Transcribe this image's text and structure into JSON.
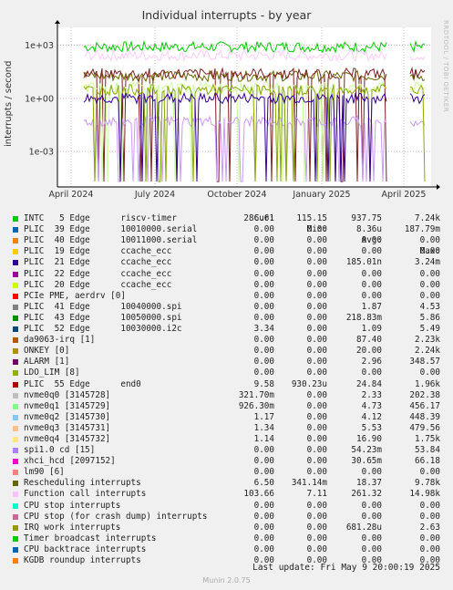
{
  "header": {
    "title": "Individual interrupts - by year",
    "side_text": "RRDTOOL / TOBI OETIKER",
    "ylabel": "interrupts / second"
  },
  "chart_data": {
    "type": "line",
    "title": "Individual interrupts - by year",
    "ylabel": "interrupts / second",
    "yscale": "log",
    "ylim": [
      1e-05,
      10000
    ],
    "yticks": [
      "1e+03",
      "1e+00",
      "1e-03"
    ],
    "xticks": [
      "April 2024",
      "July 2024",
      "October 2024",
      "January 2025",
      "April 2025"
    ],
    "grid": true,
    "series": [
      {
        "name": "INTC 5 Edge riscv-timer",
        "color": "#00cc00",
        "level": 800
      },
      {
        "name": "Function call interrupts",
        "color": "#ffccff",
        "level": 260
      },
      {
        "name": "Rescheduling interrupts",
        "color": "#666600",
        "level": 18
      },
      {
        "name": "PLIC 55 Edge end0",
        "color": "#7a1f1f",
        "level": 25
      },
      {
        "name": "nvme0q1 [3145729]",
        "color": "#ccff99",
        "level": 4
      },
      {
        "name": "spi1.0 cd [15]",
        "color": "#cc99ff",
        "level": 0.05
      },
      {
        "name": "ALARM [1]",
        "color": "#88aa00",
        "level": 3
      },
      {
        "name": "PLIC 21 Edge ccache_ecc",
        "color": "#330099",
        "level": 1
      }
    ]
  },
  "legend": {
    "headers": [
      "Cur:",
      "Min:",
      "Avg:",
      "Max:"
    ],
    "rows": [
      {
        "label": "INTC   5 Edge      riscv-timer",
        "color": "#00cc00",
        "cur": "286.61",
        "min": "115.15",
        "avg": "937.75",
        "max": "7.24k"
      },
      {
        "label": "PLIC  39 Edge      10010000.serial",
        "color": "#0066b3",
        "cur": "0.00",
        "min": "0.00",
        "avg": "8.36u",
        "max": "187.79m"
      },
      {
        "label": "PLIC  40 Edge      10011000.serial",
        "color": "#ff8000",
        "cur": "0.00",
        "min": "0.00",
        "avg": "0.00",
        "max": "0.00"
      },
      {
        "label": "PLIC  19 Edge      ccache_ecc",
        "color": "#ffcc00",
        "cur": "0.00",
        "min": "0.00",
        "avg": "0.00",
        "max": "0.00"
      },
      {
        "label": "PLIC  21 Edge      ccache_ecc",
        "color": "#330099",
        "cur": "0.00",
        "min": "0.00",
        "avg": "185.01n",
        "max": "3.24m"
      },
      {
        "label": "PLIC  22 Edge      ccache_ecc",
        "color": "#990099",
        "cur": "0.00",
        "min": "0.00",
        "avg": "0.00",
        "max": "0.00"
      },
      {
        "label": "PLIC  20 Edge      ccache_ecc",
        "color": "#ccff00",
        "cur": "0.00",
        "min": "0.00",
        "avg": "0.00",
        "max": "0.00"
      },
      {
        "label": "PCIe PME, aerdrv [0]",
        "color": "#ff0000",
        "cur": "0.00",
        "min": "0.00",
        "avg": "0.00",
        "max": "0.00"
      },
      {
        "label": "PLIC  41 Edge      10040000.spi",
        "color": "#808080",
        "cur": "0.00",
        "min": "0.00",
        "avg": "1.87",
        "max": "4.53"
      },
      {
        "label": "PLIC  43 Edge      10050000.spi",
        "color": "#008f00",
        "cur": "0.00",
        "min": "0.00",
        "avg": "218.83m",
        "max": "5.86"
      },
      {
        "label": "PLIC  52 Edge      10030000.i2c",
        "color": "#00487d",
        "cur": "3.34",
        "min": "0.00",
        "avg": "1.09",
        "max": "5.49"
      },
      {
        "label": "da9063-irq [1]",
        "color": "#b35a00",
        "cur": "0.00",
        "min": "0.00",
        "avg": "87.40",
        "max": "2.23k"
      },
      {
        "label": "ONKEY [0]",
        "color": "#b38f00",
        "cur": "0.00",
        "min": "0.00",
        "avg": "20.00",
        "max": "2.24k"
      },
      {
        "label": "ALARM [1]",
        "color": "#6b006b",
        "cur": "0.00",
        "min": "0.00",
        "avg": "2.96",
        "max": "348.57"
      },
      {
        "label": "LDO_LIM [8]",
        "color": "#8fb300",
        "cur": "0.00",
        "min": "0.00",
        "avg": "0.00",
        "max": "0.00"
      },
      {
        "label": "PLIC  55 Edge      end0",
        "color": "#b30000",
        "cur": "9.58",
        "min": "930.23u",
        "avg": "24.84",
        "max": "1.96k"
      },
      {
        "label": "nvme0q0 [3145728]",
        "color": "#bebebe",
        "cur": "321.70m",
        "min": "0.00",
        "avg": "2.33",
        "max": "202.38"
      },
      {
        "label": "nvme0q1 [3145729]",
        "color": "#80ff80",
        "cur": "926.30m",
        "min": "0.00",
        "avg": "4.73",
        "max": "456.17"
      },
      {
        "label": "nvme0q2 [3145730]",
        "color": "#80c9ff",
        "cur": "1.17",
        "min": "0.00",
        "avg": "4.12",
        "max": "448.39"
      },
      {
        "label": "nvme0q3 [3145731]",
        "color": "#ffc080",
        "cur": "1.34",
        "min": "0.00",
        "avg": "5.53",
        "max": "479.56"
      },
      {
        "label": "nvme0q4 [3145732]",
        "color": "#ffe680",
        "cur": "1.14",
        "min": "0.00",
        "avg": "16.90",
        "max": "1.75k"
      },
      {
        "label": "spi1.0 cd [15]",
        "color": "#aa80ff",
        "cur": "0.00",
        "min": "0.00",
        "avg": "54.23m",
        "max": "53.84"
      },
      {
        "label": "xhci_hcd [2097152]",
        "color": "#ee00cc",
        "cur": "0.00",
        "min": "0.00",
        "avg": "30.65m",
        "max": "66.18"
      },
      {
        "label": "lm90 [6]",
        "color": "#ff8080",
        "cur": "0.00",
        "min": "0.00",
        "avg": "0.00",
        "max": "0.00"
      },
      {
        "label": "Rescheduling interrupts",
        "color": "#666600",
        "cur": "6.50",
        "min": "341.14m",
        "avg": "18.37",
        "max": "9.78k"
      },
      {
        "label": "Function call interrupts",
        "color": "#ffbfff",
        "cur": "103.66",
        "min": "7.11",
        "avg": "261.32",
        "max": "14.98k"
      },
      {
        "label": "CPU stop interrupts",
        "color": "#00ffcc",
        "cur": "0.00",
        "min": "0.00",
        "avg": "0.00",
        "max": "0.00"
      },
      {
        "label": "CPU stop (for crash dump) interrupts",
        "color": "#cc6699",
        "cur": "0.00",
        "min": "0.00",
        "avg": "0.00",
        "max": "0.00"
      },
      {
        "label": "IRQ work interrupts",
        "color": "#999900",
        "cur": "0.00",
        "min": "0.00",
        "avg": "681.28u",
        "max": "2.63"
      },
      {
        "label": "Timer broadcast interrupts",
        "color": "#00cc00",
        "cur": "0.00",
        "min": "0.00",
        "avg": "0.00",
        "max": "0.00"
      },
      {
        "label": "CPU backtrace interrupts",
        "color": "#0066b3",
        "cur": "0.00",
        "min": "0.00",
        "avg": "0.00",
        "max": "0.00"
      },
      {
        "label": "KGDB roundup interrupts",
        "color": "#ff8000",
        "cur": "0.00",
        "min": "0.00",
        "avg": "0.00",
        "max": "0.00"
      }
    ]
  },
  "last_update": "Last update: Fri May  9 20:00:19 2025",
  "footer": "Munin 2.0.75"
}
